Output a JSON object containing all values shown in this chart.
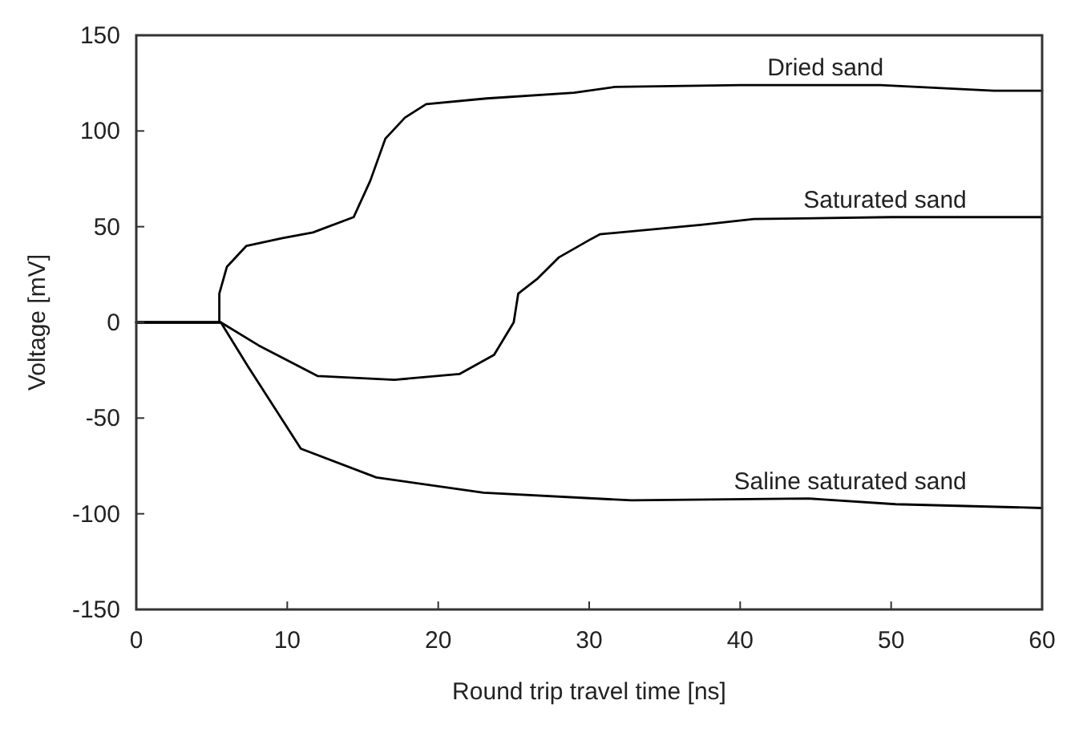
{
  "chart_data": {
    "type": "line",
    "xlabel": "Round trip travel time [ns]",
    "ylabel": "Voltage [mV]",
    "xlim": [
      0,
      60
    ],
    "xticks": [
      0,
      10,
      20,
      30,
      40,
      50,
      60
    ],
    "ylim": [
      -150,
      150
    ],
    "yticks": [
      -150,
      -100,
      -50,
      0,
      50,
      100,
      150
    ],
    "grid": false,
    "marker": "none",
    "line_style": "solid",
    "series": [
      {
        "name": "Dried sand",
        "color": "#000000",
        "x": [
          0,
          5.5,
          5.5,
          6,
          7.3,
          9.7,
          11.7,
          14.4,
          15.5,
          16.5,
          17.8,
          19.2,
          23.2,
          29,
          31.7,
          40,
          49.3,
          56.8,
          60
        ],
        "values": [
          0,
          0,
          15,
          29,
          40,
          44,
          47,
          55,
          74,
          96,
          107,
          114,
          117,
          120,
          123,
          124,
          124,
          121,
          121
        ]
      },
      {
        "name": "Saturated sand",
        "color": "#000000",
        "x": [
          0,
          5.6,
          8.1,
          12,
          17.1,
          21.4,
          23.7,
          25,
          25.3,
          26.6,
          28,
          30,
          30.7,
          37.4,
          40.9,
          50,
          60
        ],
        "values": [
          0,
          0,
          -12,
          -28,
          -30,
          -27,
          -17,
          0,
          15,
          23,
          34,
          43,
          46,
          51,
          54,
          55,
          55
        ]
      },
      {
        "name": "Saline saturated sand",
        "color": "#000000",
        "x": [
          0,
          5.6,
          7.4,
          10.9,
          15.9,
          23,
          32.8,
          44.5,
          50.3,
          60
        ],
        "values": [
          0,
          0,
          -23,
          -66,
          -81,
          -89,
          -93,
          -92,
          -95,
          -97
        ]
      }
    ]
  }
}
